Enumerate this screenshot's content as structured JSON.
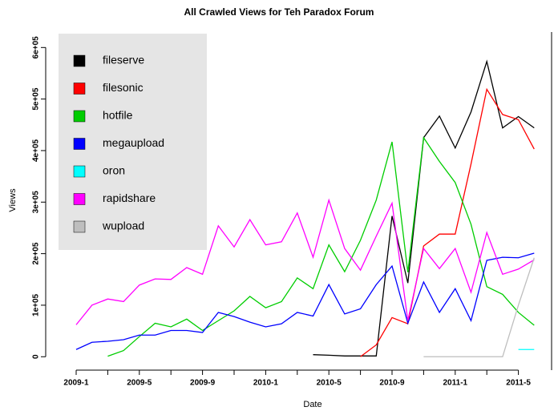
{
  "chart_data": {
    "type": "line",
    "title": "All Crawled Views for Teh Paradox Forum",
    "x_label": "Date",
    "y_label": "Views",
    "categories": [
      "2009-1",
      null,
      null,
      null,
      "2009-5",
      null,
      null,
      null,
      "2009-9",
      null,
      null,
      null,
      "2010-1",
      null,
      null,
      null,
      "2010-5",
      null,
      null,
      null,
      "2010-9",
      null,
      null,
      null,
      "2011-1",
      null,
      null,
      null,
      "2011-5",
      null
    ],
    "ylim": [
      -26000,
      630000
    ],
    "yticks": [
      0,
      {
        "value": 100000,
        "label": "1e+05"
      },
      {
        "value": 200000,
        "label": "2e+05"
      },
      {
        "value": 300000,
        "label": "3e+05"
      },
      {
        "value": 400000,
        "label": "4e+05"
      },
      {
        "value": 500000,
        "label": "5e+05"
      },
      {
        "value": 600000,
        "label": "6e+05"
      }
    ],
    "legend": "top-left",
    "series": [
      {
        "name": "fileserve",
        "color": "#000000",
        "values": [
          null,
          null,
          null,
          null,
          null,
          null,
          null,
          null,
          null,
          null,
          null,
          null,
          null,
          null,
          null,
          4000,
          3000,
          1500,
          1500,
          1500,
          273000,
          143000,
          425000,
          467000,
          405000,
          475000,
          573000,
          444000,
          466000,
          444000
        ]
      },
      {
        "name": "filesonic",
        "color": "#ff0000",
        "values": [
          null,
          null,
          null,
          null,
          null,
          null,
          null,
          null,
          null,
          null,
          null,
          null,
          null,
          null,
          null,
          null,
          null,
          null,
          0,
          23000,
          76000,
          64000,
          215000,
          238000,
          238000,
          374000,
          519000,
          470000,
          460000,
          403000
        ]
      },
      {
        "name": "hotfile",
        "color": "#00cd00",
        "values": [
          null,
          null,
          1000,
          12000,
          39000,
          65000,
          58000,
          73000,
          51000,
          70000,
          89000,
          117000,
          95000,
          107000,
          153000,
          132000,
          217000,
          165000,
          226000,
          304000,
          417000,
          164000,
          425000,
          379000,
          338000,
          257000,
          136000,
          121000,
          86000,
          61000
        ]
      },
      {
        "name": "megaupload",
        "color": "#0000ff",
        "values": [
          14000,
          28000,
          30000,
          33000,
          42000,
          42000,
          51000,
          51000,
          47000,
          86000,
          78000,
          67000,
          58000,
          64000,
          86000,
          79000,
          140000,
          83000,
          93000,
          140000,
          176000,
          65000,
          145000,
          86000,
          132000,
          70000,
          187000,
          193000,
          192000,
          201000
        ]
      },
      {
        "name": "oron",
        "color": "#00ffff",
        "values": [
          null,
          null,
          null,
          null,
          null,
          null,
          null,
          null,
          null,
          null,
          null,
          null,
          null,
          null,
          null,
          null,
          null,
          null,
          null,
          null,
          null,
          null,
          null,
          null,
          null,
          null,
          null,
          null,
          14000,
          14000
        ]
      },
      {
        "name": "rapidshare",
        "color": "#ff00ff",
        "values": [
          62000,
          100000,
          112000,
          107000,
          139000,
          151000,
          150000,
          173000,
          160000,
          254000,
          213000,
          266000,
          217000,
          223000,
          279000,
          193000,
          304000,
          210000,
          168000,
          234000,
          298000,
          70000,
          210000,
          171000,
          210000,
          125000,
          241000,
          160000,
          170000,
          188000
        ]
      },
      {
        "name": "wupload",
        "color": "#bebebe",
        "values": [
          null,
          null,
          null,
          null,
          null,
          null,
          null,
          null,
          null,
          null,
          null,
          null,
          null,
          null,
          null,
          null,
          null,
          null,
          null,
          null,
          null,
          null,
          0,
          0,
          0,
          0,
          0,
          0,
          100000,
          192000
        ]
      }
    ]
  }
}
